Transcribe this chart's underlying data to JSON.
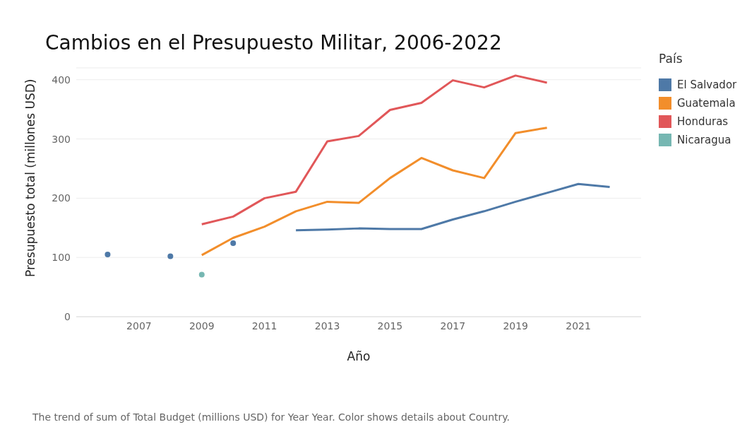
{
  "chart_data": {
    "type": "line",
    "title": "Cambios en el Presupuesto Militar, 2006-2022",
    "xlabel": "Año",
    "ylabel": "Presupuesto total (millones USD)",
    "legend_title": "País",
    "x": [
      2006,
      2007,
      2008,
      2009,
      2010,
      2011,
      2012,
      2013,
      2014,
      2015,
      2016,
      2017,
      2018,
      2019,
      2020,
      2021,
      2022
    ],
    "series": [
      {
        "name": "El Salvador",
        "color": "#4e79a7",
        "values": [
          105,
          null,
          102,
          null,
          124,
          null,
          146,
          147,
          149,
          148,
          148,
          164,
          178,
          194,
          209,
          224,
          219
        ]
      },
      {
        "name": "Guatemala",
        "color": "#f28e2b",
        "values": [
          null,
          null,
          null,
          104,
          133,
          152,
          178,
          194,
          192,
          234,
          268,
          247,
          234,
          310,
          319,
          null,
          null
        ]
      },
      {
        "name": "Honduras",
        "color": "#e15759",
        "values": [
          null,
          null,
          null,
          156,
          169,
          200,
          211,
          296,
          305,
          349,
          361,
          399,
          387,
          407,
          395,
          null,
          null
        ]
      },
      {
        "name": "Nicaragua",
        "color": "#76b7b2",
        "marker": "circle",
        "values": [
          null,
          null,
          null,
          71,
          null,
          null,
          null,
          null,
          null,
          null,
          null,
          null,
          null,
          null,
          null,
          null,
          null
        ]
      }
    ],
    "xlim": [
      2005,
      2023
    ],
    "xticks": [
      2007,
      2009,
      2011,
      2013,
      2015,
      2017,
      2019,
      2021
    ],
    "ylim": [
      0,
      420
    ],
    "yticks": [
      0,
      100,
      200,
      300,
      400
    ],
    "grid": "y",
    "legend": "right",
    "line_style": "solid",
    "annotations": [
      "The trend of sum of Total Budget (millions USD) for Year Year.  Color shows details about Country."
    ]
  }
}
